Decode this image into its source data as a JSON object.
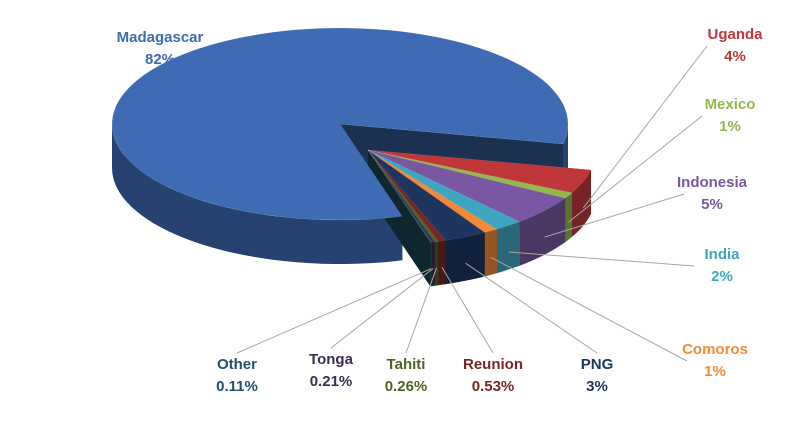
{
  "chart_data": {
    "type": "pie",
    "categories": [
      "Madagascar",
      "Uganda",
      "Mexico",
      "Indonesia",
      "India",
      "Comoros",
      "PNG",
      "Reunion",
      "Tahiti",
      "Tonga",
      "Other"
    ],
    "values": [
      82,
      4,
      1,
      5,
      2,
      1,
      3,
      0.53,
      0.26,
      0.21,
      0.11
    ],
    "value_labels": [
      "82%",
      "4%",
      "1%",
      "5%",
      "2%",
      "1%",
      "3%",
      "0.53%",
      "0.26%",
      "0.21%",
      "0.11%"
    ],
    "colors": [
      "#3e6bb4",
      "#c0373a",
      "#93b94e",
      "#7a57a2",
      "#3fa6c2",
      "#f28a35",
      "#1d355f",
      "#7a2525",
      "#4d6424",
      "#3b2d55",
      "#1e5566"
    ]
  }
}
